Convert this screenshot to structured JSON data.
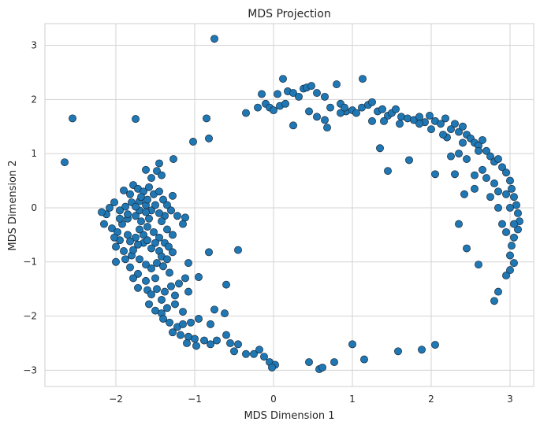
{
  "chart_data": {
    "type": "scatter",
    "title": "MDS Projection",
    "xlabel": "MDS Dimension 1",
    "ylabel": "MDS Dimension 2",
    "xlim": [
      -2.9,
      3.3
    ],
    "ylim": [
      -3.3,
      3.4
    ],
    "xticks": [
      -2,
      -1,
      0,
      1,
      2,
      3
    ],
    "yticks": [
      -3,
      -2,
      -1,
      0,
      1,
      2,
      3
    ],
    "xtick_labels": [
      "−2",
      "−1",
      "0",
      "1",
      "2",
      "3"
    ],
    "ytick_labels": [
      "−3",
      "−2",
      "−1",
      "0",
      "1",
      "2",
      "3"
    ],
    "grid": true,
    "marker_color": "#1f77b4",
    "points": [
      [
        -0.75,
        3.12
      ],
      [
        -2.55,
        1.65
      ],
      [
        -2.65,
        0.84
      ],
      [
        -1.75,
        1.64
      ],
      [
        -0.85,
        1.65
      ],
      [
        -0.82,
        1.28
      ],
      [
        -1.02,
        1.22
      ],
      [
        -1.27,
        0.9
      ],
      [
        -1.45,
        0.82
      ],
      [
        -1.62,
        0.7
      ],
      [
        -1.55,
        0.55
      ],
      [
        -1.48,
        0.68
      ],
      [
        -1.42,
        0.6
      ],
      [
        -1.78,
        0.42
      ],
      [
        -1.72,
        0.35
      ],
      [
        -1.65,
        0.3
      ],
      [
        -1.58,
        0.38
      ],
      [
        -1.52,
        0.25
      ],
      [
        -1.45,
        0.3
      ],
      [
        -1.4,
        0.15
      ],
      [
        -1.35,
        0.05
      ],
      [
        -1.3,
        -0.05
      ],
      [
        -1.38,
        -0.15
      ],
      [
        -1.45,
        -0.1
      ],
      [
        -1.55,
        -0.05
      ],
      [
        -1.62,
        0.05
      ],
      [
        -1.7,
        0.12
      ],
      [
        -1.8,
        0.1
      ],
      [
        -1.88,
        0.02
      ],
      [
        -1.95,
        -0.05
      ],
      [
        -2.02,
        0.1
      ],
      [
        -2.08,
        0.0
      ],
      [
        -2.12,
        -0.12
      ],
      [
        -2.18,
        -0.08
      ],
      [
        -2.15,
        -0.3
      ],
      [
        -2.05,
        -0.38
      ],
      [
        -1.98,
        -0.45
      ],
      [
        -1.92,
        -0.3
      ],
      [
        -1.85,
        -0.2
      ],
      [
        -1.75,
        -0.15
      ],
      [
        -1.68,
        -0.25
      ],
      [
        -1.6,
        -0.35
      ],
      [
        -1.52,
        -0.45
      ],
      [
        -1.45,
        -0.55
      ],
      [
        -1.38,
        -0.65
      ],
      [
        -1.33,
        -0.72
      ],
      [
        -1.45,
        -0.8
      ],
      [
        -1.55,
        -0.75
      ],
      [
        -1.65,
        -0.65
      ],
      [
        -1.75,
        -0.55
      ],
      [
        -1.85,
        -0.5
      ],
      [
        -1.95,
        -0.6
      ],
      [
        -2.0,
        -0.72
      ],
      [
        -1.9,
        -0.8
      ],
      [
        -1.8,
        -0.88
      ],
      [
        -1.7,
        -0.95
      ],
      [
        -1.62,
        -1.05
      ],
      [
        -1.55,
        -1.12
      ],
      [
        -1.48,
        -1.02
      ],
      [
        -1.4,
        -1.08
      ],
      [
        -1.32,
        -1.2
      ],
      [
        -1.5,
        -1.3
      ],
      [
        -1.62,
        -1.35
      ],
      [
        -1.72,
        -1.22
      ],
      [
        -1.82,
        -1.1
      ],
      [
        -2.0,
        -1.0
      ],
      [
        -1.88,
        -0.95
      ],
      [
        -1.78,
        -0.78
      ],
      [
        -1.72,
        -0.68
      ],
      [
        -1.65,
        -0.5
      ],
      [
        -1.58,
        -0.2
      ],
      [
        -1.7,
        -0.05
      ],
      [
        -1.82,
        0.25
      ],
      [
        -1.9,
        0.32
      ],
      [
        -1.68,
        0.2
      ],
      [
        -1.6,
        0.15
      ],
      [
        -1.5,
        0.05
      ],
      [
        -1.42,
        -0.25
      ],
      [
        -1.35,
        -0.4
      ],
      [
        -1.28,
        -0.5
      ],
      [
        -1.22,
        -0.15
      ],
      [
        -1.15,
        -0.3
      ],
      [
        -1.12,
        -0.18
      ],
      [
        -1.28,
        0.22
      ],
      [
        -1.62,
        -0.08
      ],
      [
        -1.75,
        0.02
      ],
      [
        -1.85,
        -0.12
      ],
      [
        -1.95,
        -0.2
      ],
      [
        -2.02,
        -0.55
      ],
      [
        -1.82,
        -0.62
      ],
      [
        -1.7,
        -0.4
      ],
      [
        -1.6,
        -0.6
      ],
      [
        -1.5,
        -0.65
      ],
      [
        -1.42,
        -0.9
      ],
      [
        -1.35,
        -0.95
      ],
      [
        -1.28,
        -0.82
      ],
      [
        -1.6,
        -1.52
      ],
      [
        -1.72,
        -1.48
      ],
      [
        -1.78,
        -1.3
      ],
      [
        -1.55,
        -1.6
      ],
      [
        -1.48,
        -1.5
      ],
      [
        -1.38,
        -1.55
      ],
      [
        -1.3,
        -1.45
      ],
      [
        -1.2,
        -1.4
      ],
      [
        -1.12,
        -1.3
      ],
      [
        -1.25,
        -1.62
      ],
      [
        -1.42,
        -1.7
      ],
      [
        -1.58,
        -1.78
      ],
      [
        -1.5,
        -1.9
      ],
      [
        -1.42,
        -1.95
      ],
      [
        -1.35,
        -1.85
      ],
      [
        -1.25,
        -1.78
      ],
      [
        -1.15,
        -1.92
      ],
      [
        -1.08,
        -1.55
      ],
      [
        -1.4,
        -2.05
      ],
      [
        -1.32,
        -2.12
      ],
      [
        -1.22,
        -2.2
      ],
      [
        -1.28,
        -2.3
      ],
      [
        -1.18,
        -2.35
      ],
      [
        -1.08,
        -2.38
      ],
      [
        -1.0,
        -2.42
      ],
      [
        -1.1,
        -2.5
      ],
      [
        -0.98,
        -2.55
      ],
      [
        -0.88,
        -2.45
      ],
      [
        -0.8,
        -2.52
      ],
      [
        -0.72,
        -2.45
      ],
      [
        -0.6,
        -2.35
      ],
      [
        -0.55,
        -2.5
      ],
      [
        -0.45,
        -2.52
      ],
      [
        -0.5,
        -2.65
      ],
      [
        -0.35,
        -2.7
      ],
      [
        -0.25,
        -2.7
      ],
      [
        -0.18,
        -2.62
      ],
      [
        -0.12,
        -2.75
      ],
      [
        -0.05,
        -2.85
      ],
      [
        0.02,
        -2.9
      ],
      [
        -0.02,
        -2.95
      ],
      [
        -1.05,
        -2.12
      ],
      [
        -0.95,
        -2.05
      ],
      [
        -1.15,
        -2.15
      ],
      [
        -0.8,
        -2.15
      ],
      [
        -0.75,
        -1.88
      ],
      [
        -0.62,
        -1.95
      ],
      [
        -0.6,
        -1.42
      ],
      [
        -0.95,
        -1.28
      ],
      [
        -0.82,
        -0.82
      ],
      [
        -0.45,
        -0.78
      ],
      [
        -1.08,
        -1.02
      ],
      [
        0.45,
        -2.85
      ],
      [
        0.58,
        -2.98
      ],
      [
        0.62,
        -2.95
      ],
      [
        0.77,
        -2.85
      ],
      [
        1.0,
        -2.52
      ],
      [
        1.15,
        -2.8
      ],
      [
        1.58,
        -2.65
      ],
      [
        1.88,
        -2.62
      ],
      [
        2.05,
        -2.53
      ],
      [
        0.05,
        2.1
      ],
      [
        0.12,
        2.38
      ],
      [
        0.18,
        2.15
      ],
      [
        0.25,
        2.12
      ],
      [
        0.32,
        2.05
      ],
      [
        0.38,
        2.2
      ],
      [
        0.42,
        2.22
      ],
      [
        0.48,
        2.25
      ],
      [
        0.55,
        2.12
      ],
      [
        0.65,
        2.05
      ],
      [
        0.8,
        2.28
      ],
      [
        0.72,
        1.85
      ],
      [
        0.85,
        1.92
      ],
      [
        0.92,
        1.78
      ],
      [
        1.0,
        1.8
      ],
      [
        1.05,
        1.75
      ],
      [
        1.12,
        1.85
      ],
      [
        1.2,
        1.9
      ],
      [
        1.13,
        2.38
      ],
      [
        1.25,
        1.95
      ],
      [
        1.32,
        1.78
      ],
      [
        1.38,
        1.82
      ],
      [
        1.45,
        1.7
      ],
      [
        1.5,
        1.75
      ],
      [
        1.55,
        1.82
      ],
      [
        1.62,
        1.68
      ],
      [
        1.7,
        1.65
      ],
      [
        1.78,
        1.62
      ],
      [
        1.85,
        1.68
      ],
      [
        1.92,
        1.58
      ],
      [
        1.98,
        1.7
      ],
      [
        2.05,
        1.6
      ],
      [
        2.12,
        1.55
      ],
      [
        2.18,
        1.65
      ],
      [
        2.25,
        1.45
      ],
      [
        2.3,
        1.55
      ],
      [
        2.35,
        1.4
      ],
      [
        2.4,
        1.5
      ],
      [
        2.45,
        1.35
      ],
      [
        2.5,
        1.28
      ],
      [
        2.55,
        1.2
      ],
      [
        2.6,
        1.15
      ],
      [
        2.65,
        1.25
      ],
      [
        2.7,
        1.05
      ],
      [
        2.75,
        0.95
      ],
      [
        2.8,
        0.85
      ],
      [
        2.85,
        0.9
      ],
      [
        2.9,
        0.75
      ],
      [
        2.95,
        0.65
      ],
      [
        3.0,
        0.5
      ],
      [
        3.02,
        0.35
      ],
      [
        3.05,
        0.2
      ],
      [
        3.08,
        0.05
      ],
      [
        3.1,
        -0.1
      ],
      [
        3.12,
        -0.25
      ],
      [
        3.1,
        -0.4
      ],
      [
        3.05,
        -0.55
      ],
      [
        3.02,
        -0.7
      ],
      [
        3.0,
        -0.88
      ],
      [
        3.05,
        -1.02
      ],
      [
        3.0,
        -1.15
      ],
      [
        2.95,
        -1.25
      ],
      [
        2.85,
        -1.55
      ],
      [
        2.8,
        -1.72
      ],
      [
        2.6,
        -1.05
      ],
      [
        2.45,
        -0.75
      ],
      [
        2.35,
        -0.3
      ],
      [
        2.42,
        0.25
      ],
      [
        2.55,
        0.35
      ],
      [
        2.3,
        0.62
      ],
      [
        2.05,
        0.62
      ],
      [
        1.72,
        0.88
      ],
      [
        1.45,
        0.68
      ],
      [
        1.35,
        1.1
      ],
      [
        2.25,
        0.95
      ],
      [
        2.65,
        0.7
      ],
      [
        2.75,
        0.2
      ],
      [
        2.85,
        0.0
      ],
      [
        2.9,
        -0.3
      ],
      [
        2.95,
        -0.45
      ],
      [
        3.0,
        0.0
      ],
      [
        -0.35,
        1.75
      ],
      [
        -0.2,
        1.85
      ],
      [
        -0.15,
        2.1
      ],
      [
        -0.1,
        1.92
      ],
      [
        -0.05,
        1.85
      ],
      [
        0.0,
        1.8
      ],
      [
        0.08,
        1.88
      ],
      [
        0.15,
        1.92
      ],
      [
        0.25,
        1.52
      ],
      [
        0.45,
        1.78
      ],
      [
        0.55,
        1.68
      ],
      [
        0.65,
        1.62
      ],
      [
        0.68,
        1.48
      ],
      [
        0.85,
        1.75
      ],
      [
        1.25,
        1.6
      ],
      [
        0.9,
        1.85
      ],
      [
        1.4,
        1.6
      ],
      [
        1.6,
        1.55
      ],
      [
        2.2,
        1.3
      ],
      [
        2.4,
        1.2
      ],
      [
        2.6,
        1.05
      ],
      [
        2.7,
        0.55
      ],
      [
        2.8,
        0.45
      ],
      [
        2.85,
        0.3
      ],
      [
        2.95,
        0.25
      ],
      [
        3.05,
        -0.3
      ],
      [
        2.55,
        0.6
      ],
      [
        2.45,
        0.9
      ],
      [
        1.85,
        1.55
      ],
      [
        2.0,
        1.45
      ],
      [
        2.15,
        1.35
      ],
      [
        2.35,
        1.0
      ]
    ]
  }
}
